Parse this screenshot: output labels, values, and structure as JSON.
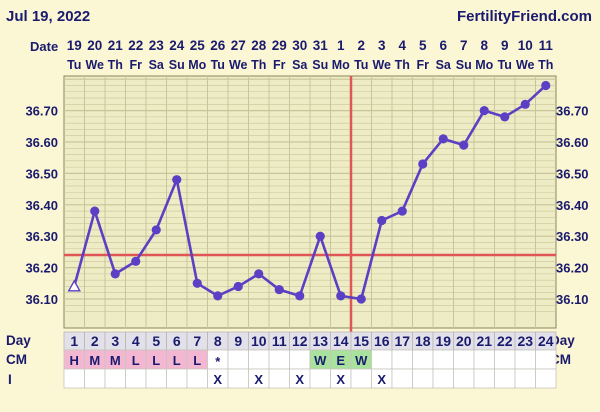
{
  "header": {
    "date": "Jul 19, 2022",
    "site": "FertilityFriend.com"
  },
  "labels": {
    "date": "Date",
    "day": "Day",
    "cm": "CM",
    "i": "I"
  },
  "colors": {
    "line": "#5b3fc4",
    "coverline": "#e05555",
    "ovulation": "#e05555",
    "grid": "#c9c49a",
    "cm_h_m_l": "#f4b7d2",
    "cm_w_e": "#a9e29d"
  },
  "chart_data": {
    "type": "line",
    "ylim": [
      36.05,
      36.8
    ],
    "yticks": [
      "36.10",
      "36.20",
      "36.30",
      "36.40",
      "36.50",
      "36.60",
      "36.70"
    ],
    "dates": [
      "19",
      "20",
      "21",
      "22",
      "23",
      "24",
      "25",
      "26",
      "27",
      "28",
      "29",
      "30",
      "31",
      "1",
      "2",
      "3",
      "4",
      "5",
      "6",
      "7",
      "8",
      "9",
      "10",
      "11"
    ],
    "weekdays": [
      "Tu",
      "We",
      "Th",
      "Fr",
      "Sa",
      "Su",
      "Mo",
      "Tu",
      "We",
      "Th",
      "Fr",
      "Sa",
      "Su",
      "Mo",
      "Tu",
      "We",
      "Th",
      "Fr",
      "Sa",
      "Su",
      "Mo",
      "Tu",
      "We",
      "Th"
    ],
    "days": [
      "1",
      "2",
      "3",
      "4",
      "5",
      "6",
      "7",
      "8",
      "9",
      "10",
      "11",
      "12",
      "13",
      "14",
      "15",
      "16",
      "17",
      "18",
      "19",
      "20",
      "21",
      "22",
      "23",
      "24"
    ],
    "temperatures": [
      36.14,
      36.38,
      36.18,
      36.22,
      36.32,
      36.48,
      36.15,
      36.11,
      36.14,
      36.18,
      36.13,
      36.11,
      36.3,
      36.11,
      36.1,
      36.35,
      36.38,
      36.53,
      36.61,
      36.59,
      36.7,
      36.68,
      36.72,
      36.78
    ],
    "first_point_open": true,
    "coverline": 36.24,
    "ovulation_day": 15,
    "cervical_mucus": [
      "H",
      "M",
      "M",
      "L",
      "L",
      "L",
      "L",
      "*",
      "",
      "",
      "",
      "",
      "W",
      "E",
      "W",
      "",
      "",
      "",
      "",
      "",
      "",
      "",
      "",
      ""
    ],
    "intercourse": [
      "",
      "",
      "",
      "",
      "",
      "",
      "",
      "X",
      "",
      "X",
      "",
      "X",
      "",
      "X",
      "",
      "X",
      "",
      "",
      "",
      "",
      "",
      "",
      "",
      ""
    ]
  }
}
